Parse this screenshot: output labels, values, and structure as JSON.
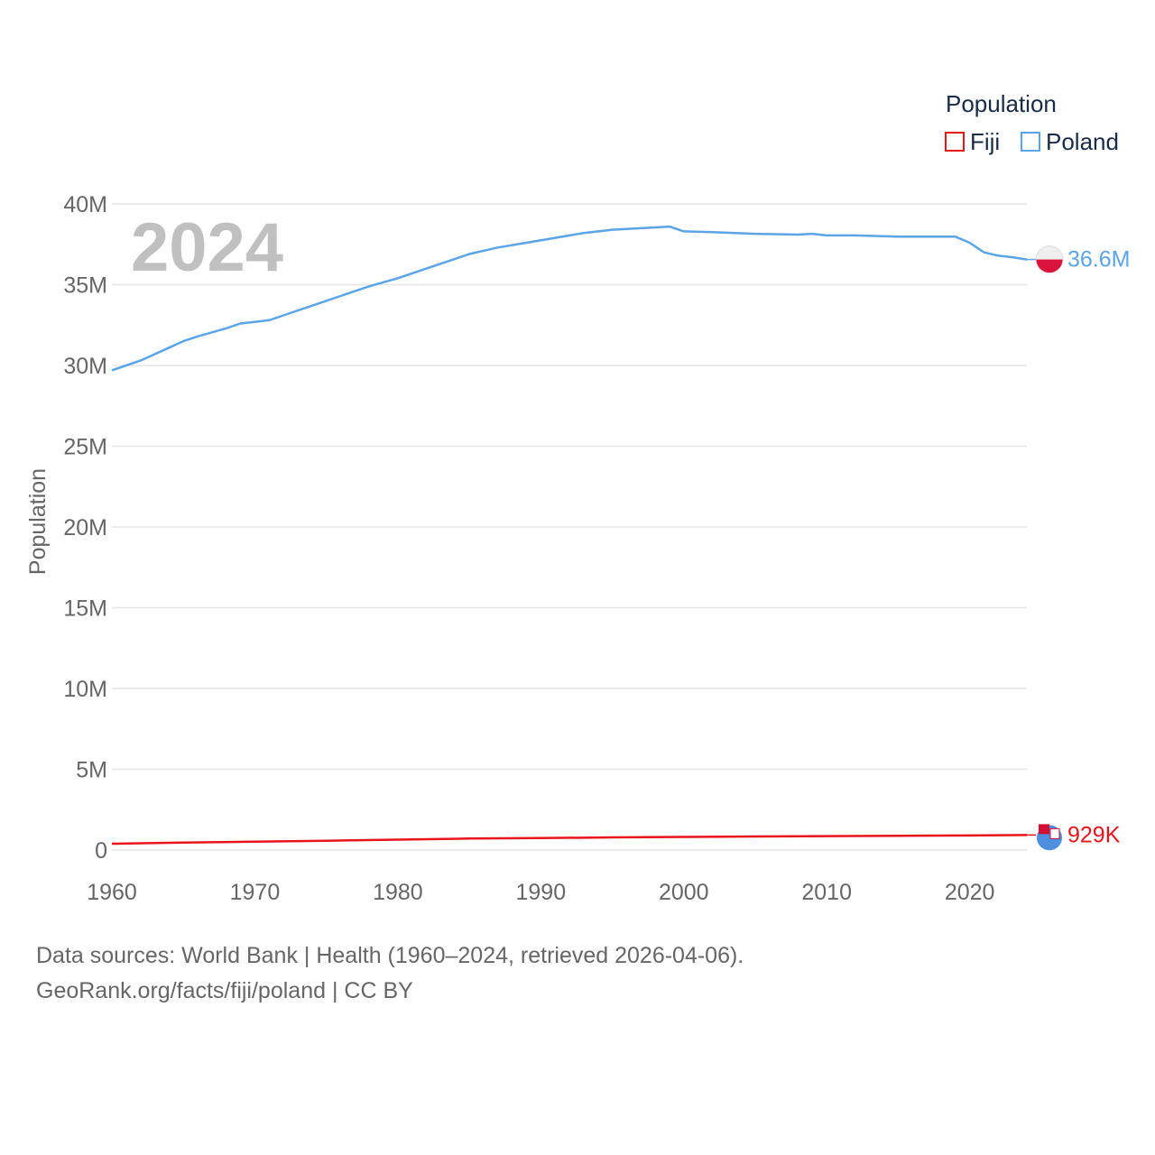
{
  "chart_data": {
    "type": "line",
    "year_label": "2024",
    "ylabel": "Population",
    "xlabel": "",
    "xlim": [
      1960,
      2024
    ],
    "ylim": [
      0,
      40000000
    ],
    "x_ticks": [
      1960,
      1970,
      1980,
      1990,
      2000,
      2010,
      2020
    ],
    "x_tick_labels": [
      "1960",
      "1970",
      "1980",
      "1990",
      "2000",
      "2010",
      "2020"
    ],
    "y_ticks": [
      0,
      5000000,
      10000000,
      15000000,
      20000000,
      25000000,
      30000000,
      35000000,
      40000000
    ],
    "y_tick_labels": [
      "0",
      "5M",
      "10M",
      "15M",
      "20M",
      "25M",
      "30M",
      "35M",
      "40M"
    ],
    "grid": true,
    "legend_title": "Population",
    "legend_position": "top-right",
    "series": [
      {
        "name": "Fiji",
        "color": "#e8141c",
        "end_label": "929K",
        "x": [
          1960,
          1965,
          1970,
          1975,
          1980,
          1985,
          1990,
          1995,
          2000,
          2005,
          2010,
          2015,
          2020,
          2024
        ],
        "values": [
          390000,
          460000,
          520000,
          575000,
          640000,
          710000,
          740000,
          780000,
          810000,
          840000,
          860000,
          880000,
          900000,
          929000
        ]
      },
      {
        "name": "Poland",
        "color": "#5ba4e5",
        "end_label": "36.6M",
        "x": [
          1960,
          1962,
          1964,
          1965,
          1966,
          1968,
          1969,
          1970,
          1971,
          1972,
          1974,
          1976,
          1978,
          1980,
          1982,
          1984,
          1985,
          1987,
          1989,
          1991,
          1993,
          1995,
          1997,
          1999,
          2000,
          2002,
          2005,
          2008,
          2009,
          2010,
          2012,
          2015,
          2017,
          2019,
          2020,
          2021,
          2022,
          2023,
          2024
        ],
        "values": [
          29700000,
          30300000,
          31100000,
          31500000,
          31800000,
          32300000,
          32600000,
          32700000,
          32800000,
          33100000,
          33700000,
          34300000,
          34900000,
          35400000,
          36000000,
          36600000,
          36900000,
          37300000,
          37600000,
          37900000,
          38200000,
          38400000,
          38500000,
          38600000,
          38300000,
          38250000,
          38150000,
          38100000,
          38150000,
          38050000,
          38050000,
          37980000,
          37980000,
          37970000,
          37600000,
          37000000,
          36800000,
          36700000,
          36560000
        ]
      }
    ]
  },
  "footer": {
    "line1": "Data sources: World Bank | Health (1960–2024, retrieved 2026-04-06).",
    "line2": "GeoRank.org/facts/fiji/poland | CC BY"
  },
  "colors": {
    "grid": "#e6e6e6",
    "axis_text": "#666666",
    "year_text": "#c0c0c0"
  }
}
